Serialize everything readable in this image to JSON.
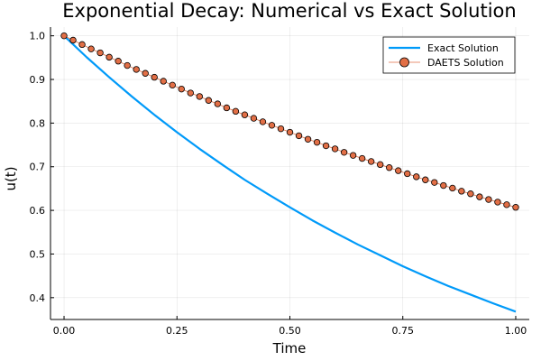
{
  "chart_data": {
    "type": "line",
    "title": "Exponential Decay: Numerical vs Exact Solution",
    "xlabel": "Time",
    "ylabel": "u(t)",
    "xlim": [
      -0.03,
      1.03
    ],
    "ylim": [
      0.35,
      1.02
    ],
    "x_ticks": [
      0.0,
      0.25,
      0.5,
      0.75,
      1.0
    ],
    "x_tick_labels": [
      "0.00",
      "0.25",
      "0.50",
      "0.75",
      "1.00"
    ],
    "y_ticks": [
      0.4,
      0.5,
      0.6,
      0.7,
      0.8,
      0.9,
      1.0
    ],
    "y_tick_labels": [
      "0.4",
      "0.5",
      "0.6",
      "0.7",
      "0.8",
      "0.9",
      "1.0"
    ],
    "grid": true,
    "legend_position": "top-right",
    "series": [
      {
        "name": "Exact Solution",
        "style": "line",
        "color": "#009af9",
        "x": [
          0.0,
          0.05,
          0.1,
          0.15,
          0.2,
          0.25,
          0.3,
          0.35,
          0.4,
          0.45,
          0.5,
          0.55,
          0.6,
          0.65,
          0.7,
          0.75,
          0.8,
          0.85,
          0.9,
          0.95,
          1.0
        ],
        "y": [
          1.0,
          0.951,
          0.905,
          0.861,
          0.819,
          0.779,
          0.741,
          0.705,
          0.67,
          0.638,
          0.607,
          0.577,
          0.549,
          0.522,
          0.497,
          0.472,
          0.449,
          0.427,
          0.407,
          0.387,
          0.368
        ]
      },
      {
        "name": "DAETS Solution",
        "style": "line+markers",
        "color": "#e26f46",
        "x": [
          0.0,
          0.02,
          0.04,
          0.06,
          0.08,
          0.1,
          0.12,
          0.14,
          0.16,
          0.18,
          0.2,
          0.22,
          0.24,
          0.26,
          0.28,
          0.3,
          0.32,
          0.34,
          0.36,
          0.38,
          0.4,
          0.42,
          0.44,
          0.46,
          0.48,
          0.5,
          0.52,
          0.54,
          0.56,
          0.58,
          0.6,
          0.62,
          0.64,
          0.66,
          0.68,
          0.7,
          0.72,
          0.74,
          0.76,
          0.78,
          0.8,
          0.82,
          0.84,
          0.86,
          0.88,
          0.9,
          0.92,
          0.94,
          0.96,
          0.98,
          1.0
        ],
        "y": [
          1.0,
          0.99,
          0.98,
          0.97,
          0.961,
          0.951,
          0.942,
          0.932,
          0.923,
          0.914,
          0.905,
          0.896,
          0.887,
          0.878,
          0.869,
          0.861,
          0.852,
          0.844,
          0.835,
          0.827,
          0.819,
          0.811,
          0.803,
          0.795,
          0.787,
          0.779,
          0.771,
          0.763,
          0.756,
          0.748,
          0.741,
          0.733,
          0.726,
          0.719,
          0.712,
          0.705,
          0.698,
          0.691,
          0.684,
          0.677,
          0.67,
          0.664,
          0.657,
          0.651,
          0.644,
          0.638,
          0.631,
          0.625,
          0.619,
          0.613,
          0.607
        ]
      }
    ]
  }
}
